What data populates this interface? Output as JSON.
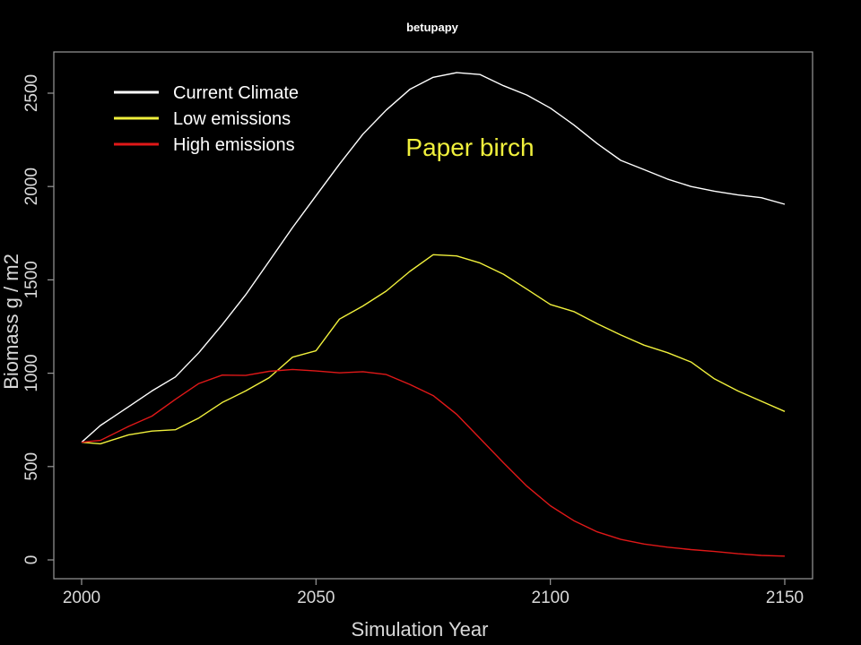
{
  "chart_data": {
    "type": "line",
    "title": "betupapy",
    "annotation": "Paper birch",
    "xlabel": "Simulation Year",
    "ylabel": "Biomass g / m2",
    "xlim": [
      2000,
      2150
    ],
    "ylim": [
      0,
      2500
    ],
    "xticks": [
      "2000",
      "2050",
      "2100",
      "2150"
    ],
    "yticks": [
      "0",
      "500",
      "1000",
      "1500",
      "2000",
      "2500"
    ],
    "grid": false,
    "legend_position": "top-left",
    "x": [
      2000,
      2004,
      2010,
      2015,
      2020,
      2025,
      2030,
      2035,
      2040,
      2045,
      2050,
      2055,
      2060,
      2065,
      2070,
      2075,
      2080,
      2085,
      2090,
      2095,
      2100,
      2105,
      2110,
      2115,
      2120,
      2125,
      2130,
      2135,
      2140,
      2145,
      2150
    ],
    "series": [
      {
        "name": "Current Climate",
        "color": "#ffffff",
        "values": [
          630,
          720,
          820,
          905,
          980,
          1110,
          1260,
          1420,
          1600,
          1780,
          1950,
          2120,
          2280,
          2410,
          2520,
          2585,
          2610,
          2600,
          2540,
          2490,
          2420,
          2330,
          2230,
          2140,
          2090,
          2040,
          2000,
          1975,
          1955,
          1940,
          1905
        ]
      },
      {
        "name": "Low emissions",
        "color": "#f0f03c",
        "values": [
          630,
          622,
          670,
          690,
          697,
          760,
          843,
          905,
          976,
          1086,
          1120,
          1290,
          1360,
          1440,
          1545,
          1635,
          1628,
          1590,
          1530,
          1450,
          1368,
          1330,
          1265,
          1205,
          1150,
          1110,
          1060,
          970,
          905,
          850,
          795
        ]
      },
      {
        "name": "High emissions",
        "color": "#e01818",
        "values": [
          630,
          640,
          715,
          770,
          860,
          945,
          990,
          988,
          1010,
          1020,
          1012,
          1002,
          1008,
          993,
          940,
          880,
          780,
          650,
          520,
          395,
          290,
          210,
          150,
          110,
          85,
          68,
          55,
          45,
          33,
          24,
          20
        ]
      }
    ]
  }
}
